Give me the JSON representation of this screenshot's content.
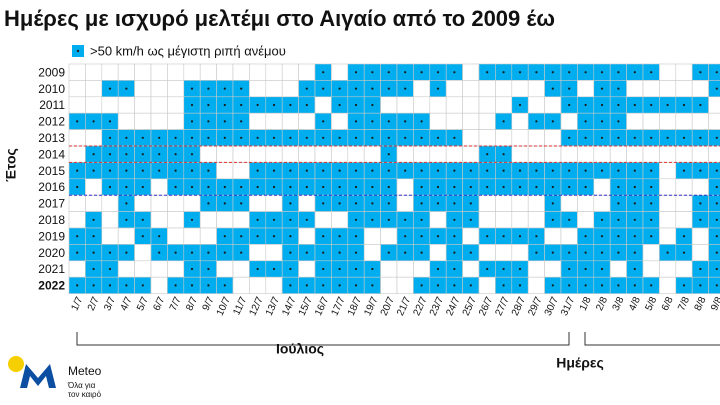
{
  "chart_data": {
    "type": "heatmap",
    "title": "Ημέρες με ισχυρό μελτέμι στο Αιγαίο από το 2009 έω",
    "legend_label": ">50 km/h ως μέγιστη ριπή ανέμου",
    "y_label": "Έτος",
    "x_label": "Ημέρες",
    "month_label": "Ιούλιος",
    "color": "#00aeef",
    "categories": [
      "1/7",
      "2/7",
      "3/7",
      "4/7",
      "5/7",
      "6/7",
      "7/7",
      "8/7",
      "9/7",
      "10/7",
      "11/7",
      "12/7",
      "13/7",
      "14/7",
      "15/7",
      "16/7",
      "17/7",
      "18/7",
      "19/7",
      "20/7",
      "21/7",
      "22/7",
      "23/7",
      "24/7",
      "25/7",
      "26/7",
      "27/7",
      "28/7",
      "29/7",
      "30/7",
      "31/7",
      "1/8",
      "2/8",
      "3/8",
      "4/8",
      "5/8",
      "6/8",
      "7/8",
      "8/8",
      "9/8"
    ],
    "rows": [
      "2009",
      "2010",
      "2011",
      "2012",
      "2013",
      "2014",
      "2015",
      "2016",
      "2017",
      "2018",
      "2019",
      "2020",
      "2021",
      "2022"
    ],
    "values": [
      [
        0,
        0,
        0,
        0,
        0,
        0,
        0,
        0,
        0,
        0,
        0,
        0,
        0,
        0,
        0,
        1,
        0,
        1,
        1,
        1,
        1,
        1,
        1,
        1,
        0,
        1,
        1,
        1,
        1,
        1,
        1,
        1,
        1,
        1,
        1,
        1,
        0,
        0,
        1,
        1
      ],
      [
        0,
        0,
        1,
        1,
        0,
        0,
        0,
        1,
        1,
        1,
        1,
        0,
        0,
        0,
        1,
        1,
        1,
        1,
        1,
        1,
        1,
        0,
        1,
        0,
        0,
        0,
        0,
        0,
        0,
        1,
        1,
        0,
        1,
        1,
        0,
        0,
        0,
        0,
        0,
        1
      ],
      [
        0,
        0,
        0,
        0,
        0,
        0,
        0,
        1,
        1,
        1,
        1,
        1,
        1,
        1,
        1,
        0,
        1,
        1,
        1,
        0,
        0,
        0,
        0,
        0,
        0,
        0,
        0,
        1,
        0,
        0,
        1,
        1,
        1,
        1,
        1,
        1,
        1,
        1,
        1,
        0
      ],
      [
        1,
        1,
        1,
        0,
        0,
        0,
        0,
        1,
        1,
        1,
        1,
        0,
        0,
        0,
        0,
        1,
        0,
        1,
        1,
        1,
        1,
        1,
        0,
        0,
        0,
        0,
        1,
        0,
        1,
        1,
        0,
        1,
        1,
        1,
        0,
        0,
        0,
        0,
        0,
        0
      ],
      [
        0,
        0,
        1,
        1,
        1,
        1,
        1,
        1,
        1,
        1,
        1,
        1,
        1,
        1,
        1,
        1,
        1,
        1,
        1,
        1,
        1,
        1,
        1,
        1,
        0,
        0,
        0,
        0,
        0,
        0,
        1,
        1,
        1,
        1,
        1,
        1,
        1,
        1,
        1,
        1
      ],
      [
        0,
        1,
        1,
        1,
        1,
        1,
        1,
        1,
        0,
        0,
        0,
        0,
        0,
        0,
        0,
        0,
        0,
        0,
        0,
        1,
        0,
        0,
        0,
        0,
        0,
        1,
        1,
        0,
        0,
        0,
        0,
        0,
        0,
        0,
        0,
        0,
        0,
        0,
        0,
        0
      ],
      [
        1,
        1,
        1,
        1,
        1,
        1,
        1,
        1,
        1,
        0,
        0,
        1,
        1,
        1,
        1,
        1,
        1,
        1,
        1,
        1,
        1,
        1,
        1,
        1,
        1,
        1,
        1,
        1,
        1,
        1,
        1,
        1,
        1,
        1,
        1,
        1,
        0,
        1,
        1,
        1
      ],
      [
        1,
        0,
        1,
        1,
        1,
        0,
        1,
        1,
        1,
        1,
        1,
        1,
        1,
        1,
        1,
        1,
        1,
        1,
        1,
        1,
        0,
        1,
        1,
        1,
        1,
        1,
        1,
        1,
        1,
        1,
        1,
        1,
        0,
        1,
        1,
        1,
        0,
        0,
        0,
        1
      ],
      [
        0,
        0,
        0,
        1,
        0,
        0,
        0,
        0,
        1,
        1,
        1,
        0,
        0,
        1,
        0,
        1,
        1,
        1,
        1,
        1,
        0,
        1,
        1,
        1,
        1,
        0,
        0,
        0,
        0,
        1,
        0,
        0,
        0,
        1,
        1,
        1,
        0,
        0,
        1,
        1
      ],
      [
        0,
        1,
        0,
        1,
        1,
        0,
        0,
        1,
        0,
        0,
        0,
        1,
        1,
        1,
        1,
        0,
        0,
        1,
        1,
        1,
        1,
        1,
        0,
        1,
        1,
        0,
        0,
        0,
        0,
        1,
        1,
        0,
        1,
        1,
        1,
        1,
        0,
        0,
        1,
        1
      ],
      [
        1,
        1,
        0,
        0,
        1,
        1,
        0,
        0,
        0,
        1,
        1,
        1,
        1,
        1,
        0,
        1,
        1,
        1,
        0,
        0,
        1,
        1,
        1,
        1,
        0,
        1,
        1,
        1,
        1,
        0,
        0,
        1,
        1,
        1,
        1,
        1,
        0,
        1,
        0,
        1
      ],
      [
        1,
        1,
        1,
        1,
        0,
        1,
        1,
        1,
        1,
        1,
        1,
        0,
        0,
        1,
        1,
        1,
        1,
        1,
        0,
        1,
        1,
        1,
        0,
        1,
        1,
        0,
        0,
        0,
        1,
        1,
        1,
        1,
        1,
        1,
        1,
        0,
        1,
        1,
        0,
        1
      ],
      [
        0,
        1,
        1,
        0,
        0,
        0,
        0,
        1,
        1,
        0,
        0,
        1,
        1,
        1,
        0,
        1,
        1,
        1,
        1,
        0,
        0,
        0,
        1,
        1,
        0,
        1,
        1,
        1,
        0,
        0,
        1,
        1,
        1,
        0,
        1,
        0,
        0,
        0,
        1,
        1
      ],
      [
        1,
        1,
        1,
        1,
        1,
        0,
        1,
        1,
        1,
        1,
        0,
        0,
        0,
        1,
        1,
        1,
        1,
        1,
        1,
        0,
        0,
        1,
        1,
        1,
        1,
        0,
        1,
        1,
        0,
        1,
        1,
        1,
        1,
        1,
        1,
        1,
        0,
        1,
        1,
        1
      ]
    ]
  },
  "branding": {
    "name": "Meteo",
    "tagline_1": "Όλα για",
    "tagline_2": "τον καιρό"
  }
}
